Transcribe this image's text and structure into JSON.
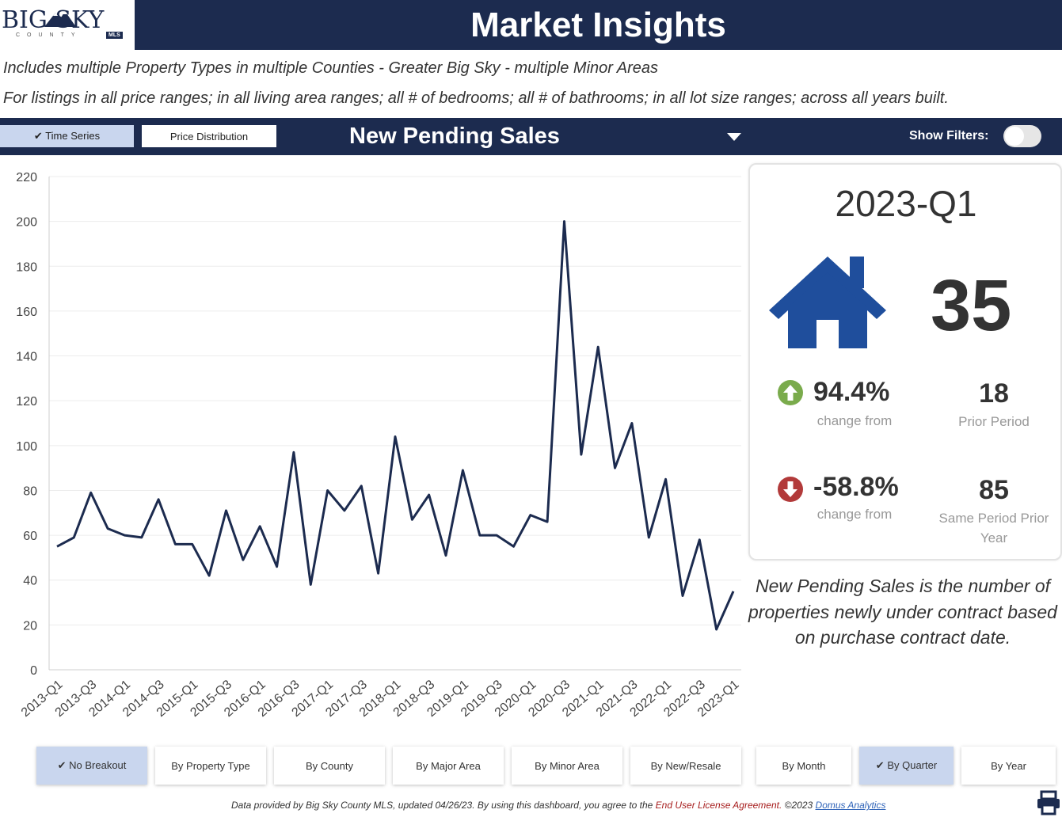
{
  "header": {
    "logo_text": "BIG SKY",
    "logo_sub": "COUNTY",
    "logo_badge": "MLS",
    "title": "Market Insights"
  },
  "description_lines": [
    "Includes multiple Property Types in multiple Counties - Greater Big Sky - multiple Minor Areas",
    "For listings in all price ranges; in all living area ranges; all # of bedrooms; all # of bathrooms; in all lot size ranges; across all years built."
  ],
  "toolbar": {
    "time_series_label": "Time Series",
    "price_distribution_label": "Price Distribution",
    "metric": "New Pending Sales",
    "show_filters_label": "Show Filters:",
    "show_filters_on": false
  },
  "chart_data": {
    "type": "line",
    "ylim": [
      0,
      220
    ],
    "y_ticks": [
      0,
      20,
      40,
      60,
      80,
      100,
      120,
      140,
      160,
      180,
      200,
      220
    ],
    "x_tick_labels": [
      "2013-Q1",
      "2013-Q3",
      "2014-Q1",
      "2014-Q3",
      "2015-Q1",
      "2015-Q3",
      "2016-Q1",
      "2016-Q3",
      "2017-Q1",
      "2017-Q3",
      "2018-Q1",
      "2018-Q3",
      "2019-Q1",
      "2019-Q3",
      "2020-Q1",
      "2020-Q3",
      "2021-Q1",
      "2021-Q3",
      "2022-Q1",
      "2022-Q3",
      "2023-Q1"
    ],
    "categories": [
      "2013-Q1",
      "2013-Q2",
      "2013-Q3",
      "2013-Q4",
      "2014-Q1",
      "2014-Q2",
      "2014-Q3",
      "2014-Q4",
      "2015-Q1",
      "2015-Q2",
      "2015-Q3",
      "2015-Q4",
      "2016-Q1",
      "2016-Q2",
      "2016-Q3",
      "2016-Q4",
      "2017-Q1",
      "2017-Q2",
      "2017-Q3",
      "2017-Q4",
      "2018-Q1",
      "2018-Q2",
      "2018-Q3",
      "2018-Q4",
      "2019-Q1",
      "2019-Q2",
      "2019-Q3",
      "2019-Q4",
      "2020-Q1",
      "2020-Q2",
      "2020-Q3",
      "2020-Q4",
      "2021-Q1",
      "2021-Q2",
      "2021-Q3",
      "2021-Q4",
      "2022-Q1",
      "2022-Q2",
      "2022-Q3",
      "2022-Q4",
      "2023-Q1"
    ],
    "values": [
      55,
      59,
      79,
      63,
      60,
      59,
      76,
      56,
      56,
      42,
      71,
      49,
      64,
      46,
      97,
      38,
      80,
      71,
      82,
      43,
      104,
      67,
      78,
      51,
      89,
      60,
      60,
      55,
      69,
      66,
      200,
      96,
      144,
      90,
      110,
      59,
      85,
      33,
      58,
      18,
      35
    ],
    "line_color": "#1c2b4f",
    "grid": true
  },
  "kpi": {
    "period": "2023-Q1",
    "value": "35",
    "house_color": "#1f4e9c",
    "change_prior": "94.4%",
    "change_prior_label": "change from",
    "prior_value": "18",
    "prior_label": "Prior Period",
    "change_year": "-58.8%",
    "change_year_label": "change from",
    "year_value": "85",
    "year_label": "Same Period Prior Year",
    "up_color": "#7aab4c",
    "down_color": "#b23a3a"
  },
  "metric_description": "New Pending Sales is the number of properties newly under contract based on purchase contract date.",
  "breakouts": [
    {
      "label": "No Breakout",
      "active": true
    },
    {
      "label": "By Property Type",
      "active": false
    },
    {
      "label": "By County",
      "active": false
    },
    {
      "label": "By Major Area",
      "active": false
    },
    {
      "label": "By Minor Area",
      "active": false
    },
    {
      "label": "By New/Resale",
      "active": false
    },
    {
      "label": "By Month",
      "active": false
    },
    {
      "label": "By Quarter",
      "active": true
    },
    {
      "label": "By Year",
      "active": false
    }
  ],
  "footer": {
    "text1": "Data provided by Big Sky County MLS, updated 04/26/23.  By using this dashboard, you agree to the ",
    "eula": "End User License Agreement.",
    "text2": "  ©2023 ",
    "domus": "Domus Analytics"
  }
}
